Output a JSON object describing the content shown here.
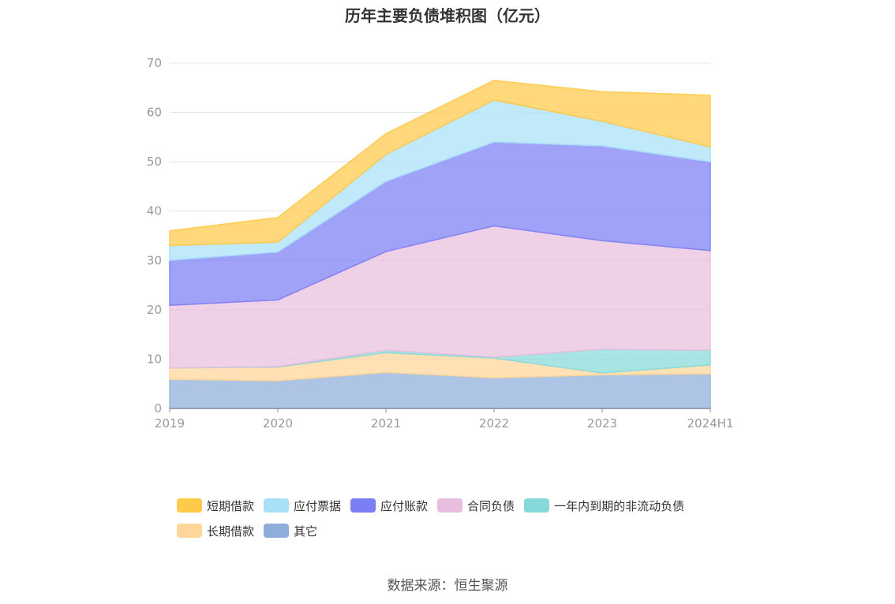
{
  "chart_data": {
    "type": "area",
    "title": "历年主要负债堆积图（亿元）",
    "xlabel": "",
    "ylabel": "",
    "categories": [
      "2019",
      "2020",
      "2021",
      "2022",
      "2023",
      "2024H1"
    ],
    "ylim": [
      0,
      70
    ],
    "yticks": [
      0,
      10,
      20,
      30,
      40,
      50,
      60,
      70
    ],
    "stacked": true,
    "grid": true,
    "legend_position": "bottom",
    "series": [
      {
        "name": "其它",
        "color": "#8fadd9",
        "values": [
          5.9,
          5.6,
          7.3,
          6.2,
          6.8,
          7.0
        ]
      },
      {
        "name": "长期借款",
        "color": "#ffd699",
        "values": [
          2.3,
          2.8,
          4.0,
          4.0,
          0.4,
          1.8
        ]
      },
      {
        "name": "一年内到期的非流动负债",
        "color": "#86d9d9",
        "values": [
          0.0,
          0.1,
          0.5,
          0.2,
          4.8,
          3.0
        ]
      },
      {
        "name": "合同负债",
        "color": "#e8bede",
        "values": [
          12.7,
          13.5,
          20.0,
          26.6,
          22.0,
          20.2
        ]
      },
      {
        "name": "应付账款",
        "color": "#7b7ef5",
        "values": [
          9.1,
          9.7,
          14.2,
          17.0,
          19.2,
          18.0
        ]
      },
      {
        "name": "应付票据",
        "color": "#a8e0f8",
        "values": [
          3.0,
          2.0,
          5.5,
          8.5,
          5.0,
          3.0
        ]
      },
      {
        "name": "短期借款",
        "color": "#ffc94a",
        "values": [
          3.0,
          5.0,
          4.2,
          4.0,
          6.0,
          10.5
        ]
      }
    ],
    "legend_order": [
      "短期借款",
      "应付票据",
      "应付账款",
      "合同负债",
      "一年内到期的非流动负债",
      "长期借款",
      "其它"
    ]
  },
  "source": "数据来源：恒生聚源"
}
